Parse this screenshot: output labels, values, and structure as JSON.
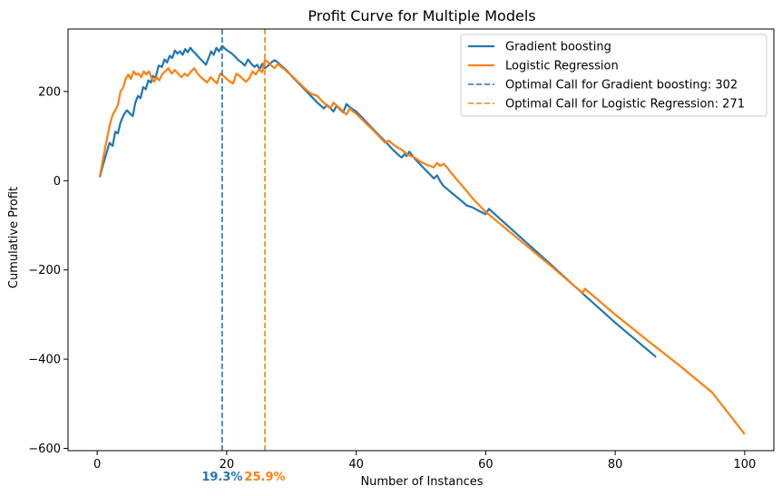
{
  "chart_data": {
    "type": "line",
    "title": "Profit Curve for Multiple Models",
    "xlabel": "Number of Instances",
    "ylabel": "Cumulative Profit",
    "xlim": [
      -4.5,
      104.5
    ],
    "ylim": [
      -605,
      340
    ],
    "xticks": [
      0,
      20,
      40,
      60,
      80,
      100
    ],
    "xtick_labels": [
      "0",
      "20",
      "40",
      "60",
      "80",
      "100"
    ],
    "yticks": [
      -600,
      -400,
      -200,
      0,
      200
    ],
    "ytick_labels": [
      "−600",
      "−400",
      "−200",
      "0",
      "200"
    ],
    "grid": false,
    "legend_position": "top-right",
    "series": [
      {
        "name": "Gradient boosting",
        "color": "#1f77b4",
        "x": [
          0.4,
          0.9,
          1.5,
          1.9,
          2.4,
          2.8,
          3.2,
          3.6,
          4.1,
          4.6,
          5.1,
          5.5,
          5.9,
          6.3,
          6.7,
          7.1,
          7.5,
          7.9,
          8.3,
          8.6,
          9.0,
          9.5,
          10.0,
          10.4,
          10.8,
          11.2,
          11.6,
          12.0,
          12.4,
          12.8,
          13.2,
          13.6,
          14.0,
          14.4,
          14.8,
          15.2,
          15.6,
          16.0,
          16.4,
          16.8,
          17.2,
          17.6,
          18.0,
          18.4,
          18.8,
          19.3,
          19.8,
          20.3,
          20.8,
          21.3,
          21.8,
          22.3,
          22.8,
          23.3,
          23.8,
          24.3,
          24.7,
          25.1,
          25.5,
          25.9,
          26.4,
          26.9,
          27.4,
          27.9,
          28.4,
          28.9,
          29.4,
          30.0,
          31.0,
          32.0,
          33.0,
          34.0,
          35.0,
          35.5,
          36.0,
          36.5,
          37.0,
          37.5,
          38.0,
          38.5,
          39.0,
          39.5,
          40.0,
          41.0,
          42.0,
          43.0,
          44.0,
          44.5,
          45.0,
          45.5,
          46.0,
          46.5,
          47.0,
          47.5,
          47.8,
          48.2,
          49.0,
          50.0,
          51.0,
          52.0,
          52.5,
          53.0,
          53.5,
          54.0,
          55.0,
          56.0,
          56.5,
          57.0,
          58.0,
          59.0,
          60.0,
          60.5,
          65.0,
          70.0,
          75.0,
          80.0,
          86.3
        ],
        "y": [
          8,
          35,
          65,
          85,
          78,
          110,
          106,
          130,
          148,
          158,
          150,
          145,
          175,
          190,
          185,
          210,
          205,
          225,
          220,
          235,
          230,
          258,
          255,
          272,
          265,
          280,
          275,
          292,
          285,
          290,
          282,
          295,
          288,
          298,
          290,
          285,
          278,
          272,
          266,
          260,
          275,
          290,
          282,
          298,
          290,
          302,
          295,
          290,
          285,
          278,
          270,
          265,
          258,
          272,
          262,
          255,
          260,
          250,
          262,
          252,
          258,
          265,
          270,
          265,
          258,
          252,
          245,
          235,
          220,
          205,
          190,
          175,
          162,
          170,
          163,
          155,
          168,
          160,
          153,
          172,
          165,
          160,
          155,
          140,
          125,
          110,
          95,
          88,
          80,
          72,
          65,
          58,
          52,
          60,
          55,
          65,
          50,
          35,
          20,
          5,
          12,
          -2,
          -12,
          -18,
          -30,
          -42,
          -48,
          -55,
          -60,
          -68,
          -75,
          -63,
          -122,
          -187,
          -253,
          -318,
          -395
        ]
      },
      {
        "name": "Logistic Regression",
        "color": "#ff7f0e",
        "x": [
          0.4,
          0.8,
          1.2,
          1.6,
          2.0,
          2.4,
          2.8,
          3.2,
          3.6,
          4.0,
          4.4,
          4.8,
          5.2,
          5.6,
          6.0,
          6.4,
          6.8,
          7.2,
          7.6,
          8.0,
          8.4,
          8.8,
          9.2,
          9.6,
          10.0,
          10.5,
          11.0,
          11.5,
          12.0,
          12.5,
          13.0,
          13.5,
          14.0,
          14.5,
          15.0,
          15.5,
          16.0,
          16.5,
          17.0,
          17.5,
          18.0,
          18.5,
          19.0,
          19.5,
          20.0,
          20.5,
          21.0,
          21.5,
          22.0,
          22.5,
          23.0,
          23.5,
          24.0,
          24.5,
          25.0,
          25.5,
          25.9,
          26.4,
          26.9,
          27.4,
          27.9,
          28.4,
          28.9,
          29.4,
          30.0,
          31.0,
          32.0,
          33.0,
          34.0,
          34.5,
          35.0,
          35.5,
          36.0,
          36.5,
          37.0,
          37.5,
          38.0,
          38.5,
          39.0,
          39.5,
          40.0,
          41.0,
          42.0,
          43.0,
          43.5,
          44.0,
          44.5,
          45.0,
          46.0,
          47.0,
          48.0,
          49.0,
          50.0,
          51.0,
          52.0,
          52.5,
          53.0,
          53.5,
          54.0,
          55.0,
          56.0,
          57.0,
          58.0,
          59.0,
          60.0,
          65.0,
          70.0,
          75.0,
          75.3,
          80.0,
          85.0,
          90.0,
          95.0,
          100.0
        ],
        "y": [
          10,
          40,
          72,
          100,
          128,
          148,
          158,
          170,
          200,
          208,
          228,
          238,
          228,
          245,
          238,
          240,
          232,
          245,
          238,
          245,
          230,
          222,
          232,
          225,
          238,
          245,
          252,
          240,
          248,
          240,
          232,
          240,
          235,
          245,
          252,
          240,
          232,
          226,
          220,
          232,
          225,
          218,
          240,
          235,
          228,
          222,
          218,
          240,
          235,
          228,
          222,
          230,
          245,
          238,
          250,
          243,
          271,
          265,
          258,
          252,
          262,
          255,
          250,
          243,
          236,
          222,
          208,
          195,
          190,
          182,
          175,
          168,
          162,
          175,
          168,
          162,
          155,
          148,
          162,
          155,
          150,
          136,
          122,
          108,
          100,
          92,
          85,
          90,
          78,
          70,
          58,
          52,
          42,
          35,
          30,
          40,
          33,
          38,
          30,
          12,
          -5,
          -22,
          -40,
          -55,
          -70,
          -130,
          -190,
          -252,
          -242,
          -300,
          -358,
          -415,
          -475,
          -568
        ]
      }
    ],
    "optimal_lines": [
      {
        "x": 19.3,
        "label": "19.3%",
        "legend": "Optimal Call for Gradient boosting: 302",
        "color": "#1f77b4"
      },
      {
        "x": 25.9,
        "label": "25.9%",
        "legend": "Optimal Call for Logistic Regression: 271",
        "color": "#ff7f0e"
      }
    ]
  }
}
